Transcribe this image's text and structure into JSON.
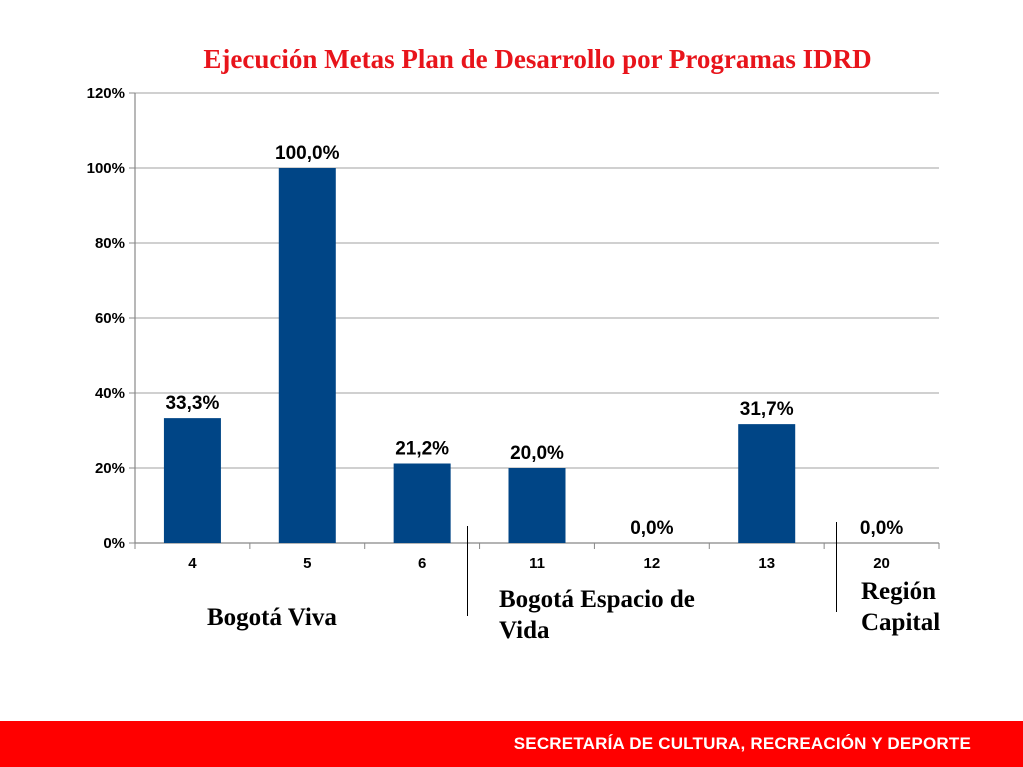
{
  "chart_data": {
    "type": "bar",
    "title": "Ejecución Metas Plan de Desarrollo por Programas IDRD",
    "categories": [
      "4",
      "5",
      "6",
      "11",
      "12",
      "13",
      "20"
    ],
    "values": [
      33.3,
      100.0,
      21.2,
      20.0,
      0.0,
      31.7,
      0.0
    ],
    "data_labels": [
      "33,3%",
      "100,0%",
      "21,2%",
      "20,0%",
      "0,0%",
      "31,7%",
      "0,0%"
    ],
    "ylim": [
      0,
      120
    ],
    "yticks": [
      0,
      20,
      40,
      60,
      80,
      100,
      120
    ],
    "ytick_labels": [
      "0%",
      "20%",
      "40%",
      "60%",
      "80%",
      "100%",
      "120%"
    ],
    "grid": true,
    "bar_color": "#004586",
    "title_color": "#e8141b"
  },
  "groups": {
    "bogota_viva": "Bogotá Viva",
    "espacio_line1": "Bogotá Espacio de",
    "espacio_line2": "Vida",
    "region_line1": "Región",
    "region_line2": "Capital"
  },
  "footer": {
    "text": "SECRETARÍA DE CULTURA, RECREACIÓN Y DEPORTE",
    "color": "#ff0000"
  }
}
